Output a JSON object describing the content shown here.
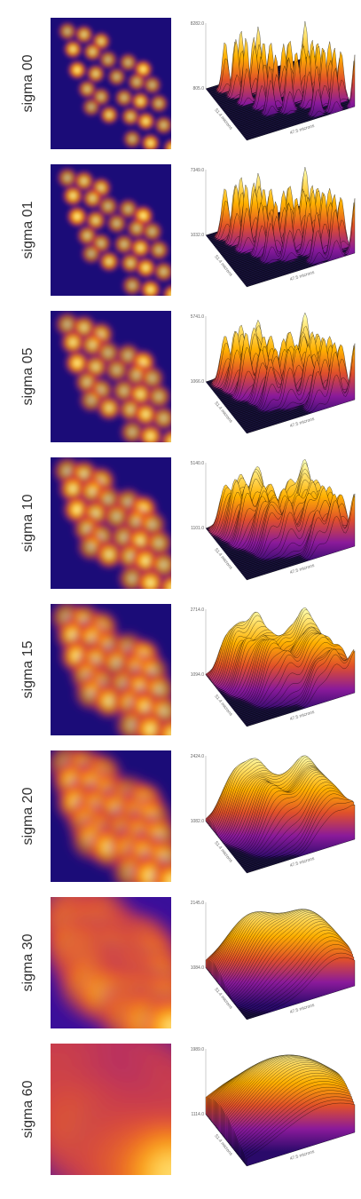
{
  "rows": [
    {
      "label": "sigma 00",
      "zmax": "8282.0",
      "zmin": "805.0",
      "ylabel": "51.4 microns",
      "xlabel": "47.5 microns"
    },
    {
      "label": "sigma 01",
      "zmax": "7349.0",
      "zmin": "1032.0",
      "ylabel": "51.4 microns",
      "xlabel": "47.5 microns"
    },
    {
      "label": "sigma 05",
      "zmax": "5741.0",
      "zmin": "1066.0",
      "ylabel": "51.4 microns",
      "xlabel": "47.5 microns"
    },
    {
      "label": "sigma 10",
      "zmax": "5140.0",
      "zmin": "1101.0",
      "ylabel": "51.4 microns",
      "xlabel": "47.5 microns"
    },
    {
      "label": "sigma 15",
      "zmax": "2714.0",
      "zmin": "1094.0",
      "ylabel": "51.4 microns",
      "xlabel": "47.5 microns"
    },
    {
      "label": "sigma 20",
      "zmax": "2424.0",
      "zmin": "1082.0",
      "ylabel": "51.4 microns",
      "xlabel": "47.5 microns"
    },
    {
      "label": "sigma 30",
      "zmax": "2145.0",
      "zmin": "1084.0",
      "ylabel": "51.4 microns",
      "xlabel": "47.5 microns"
    },
    {
      "label": "sigma 60",
      "zmax": "1989.0",
      "zmin": "1114.0",
      "ylabel": "51.4 microns",
      "xlabel": "47.5 microns"
    }
  ]
}
